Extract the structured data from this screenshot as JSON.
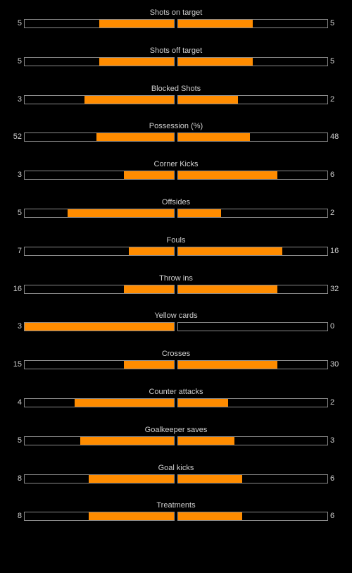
{
  "colors": {
    "background": "#000000",
    "bar_fill": "#ff8c00",
    "bar_border": "#8a8a8a",
    "text": "#cfcfcf"
  },
  "stats": [
    {
      "label": "Shots on target",
      "home": "5",
      "away": "5",
      "home_share": 0.5,
      "away_share": 0.5
    },
    {
      "label": "Shots off target",
      "home": "5",
      "away": "5",
      "home_share": 0.5,
      "away_share": 0.5
    },
    {
      "label": "Blocked Shots",
      "home": "3",
      "away": "2",
      "home_share": 0.6,
      "away_share": 0.4
    },
    {
      "label": "Possession (%)",
      "home": "52",
      "away": "48",
      "home_share": 0.52,
      "away_share": 0.48
    },
    {
      "label": "Corner Kicks",
      "home": "3",
      "away": "6",
      "home_share": 0.333,
      "away_share": 0.667
    },
    {
      "label": "Offsides",
      "home": "5",
      "away": "2",
      "home_share": 0.714,
      "away_share": 0.286
    },
    {
      "label": "Fouls",
      "home": "7",
      "away": "16",
      "home_share": 0.304,
      "away_share": 0.696
    },
    {
      "label": "Throw ins",
      "home": "16",
      "away": "32",
      "home_share": 0.333,
      "away_share": 0.667
    },
    {
      "label": "Yellow cards",
      "home": "3",
      "away": "0",
      "home_share": 1.0,
      "away_share": 0.0
    },
    {
      "label": "Crosses",
      "home": "15",
      "away": "30",
      "home_share": 0.333,
      "away_share": 0.667
    },
    {
      "label": "Counter attacks",
      "home": "4",
      "away": "2",
      "home_share": 0.667,
      "away_share": 0.333
    },
    {
      "label": "Goalkeeper saves",
      "home": "5",
      "away": "3",
      "home_share": 0.625,
      "away_share": 0.375
    },
    {
      "label": "Goal kicks",
      "home": "8",
      "away": "6",
      "home_share": 0.571,
      "away_share": 0.429
    },
    {
      "label": "Treatments",
      "home": "8",
      "away": "6",
      "home_share": 0.571,
      "away_share": 0.429
    }
  ]
}
